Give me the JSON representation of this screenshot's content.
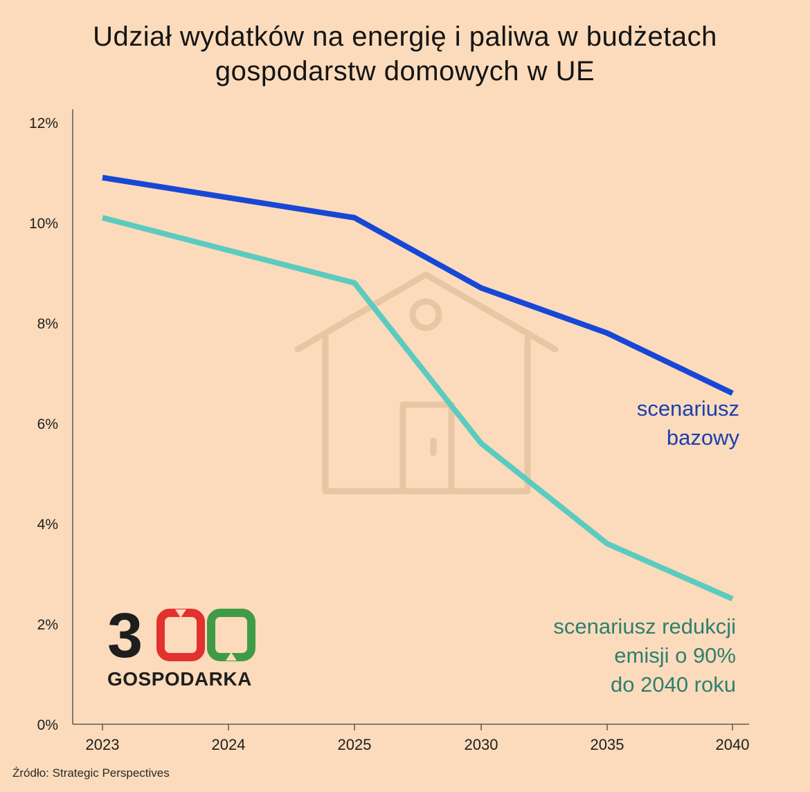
{
  "title": {
    "line1": "Udział wydatków na energię i paliwa w budżetach",
    "line2": "gospodarstw domowych w UE"
  },
  "source": "Źródło:  Strategic Perspectives",
  "logo": {
    "digit1": "3",
    "text": "GOSPODARKA"
  },
  "colors": {
    "background": "#fbdbbb",
    "base": "#1747d6",
    "reduction": "#5ccbbf",
    "reduction_label": "#2e7f70",
    "base_label": "#1a3fb0",
    "logo_red": "#e2312f",
    "logo_green": "#3f9b45",
    "house": "#e8c6a4"
  },
  "chart_data": {
    "type": "line",
    "title": "Udział wydatków na energię i paliwa w budżetach gospodarstw domowych w UE",
    "categories": [
      "2023",
      "2024",
      "2025",
      "2030",
      "2035",
      "2040"
    ],
    "x": [
      2023,
      2024,
      2025,
      2030,
      2035,
      2040
    ],
    "ylim": [
      0,
      12
    ],
    "yticks": [
      0,
      2,
      4,
      6,
      8,
      10,
      12
    ],
    "ytick_labels": [
      "0%",
      "2%",
      "4%",
      "6%",
      "8%",
      "10%",
      "12%"
    ],
    "series": [
      {
        "name": "scenariusz bazowy",
        "label_lines": [
          "scenariusz",
          "bazowy"
        ],
        "color": "#1747d6",
        "points": [
          [
            2023,
            10.9
          ],
          [
            2025,
            10.1
          ],
          [
            2030,
            8.7
          ],
          [
            2035,
            7.8
          ],
          [
            2040,
            6.6
          ]
        ]
      },
      {
        "name": "scenariusz redukcji emisji o 90% do 2040 roku",
        "label_lines": [
          "scenariusz redukcji",
          "emisji o 90%",
          "do 2040 roku"
        ],
        "color": "#5ccbbf",
        "points": [
          [
            2023,
            10.1
          ],
          [
            2025,
            8.8
          ],
          [
            2030,
            5.6
          ],
          [
            2035,
            3.6
          ],
          [
            2040,
            2.5
          ]
        ]
      }
    ],
    "xlabel": "",
    "ylabel": "",
    "grid": false
  }
}
